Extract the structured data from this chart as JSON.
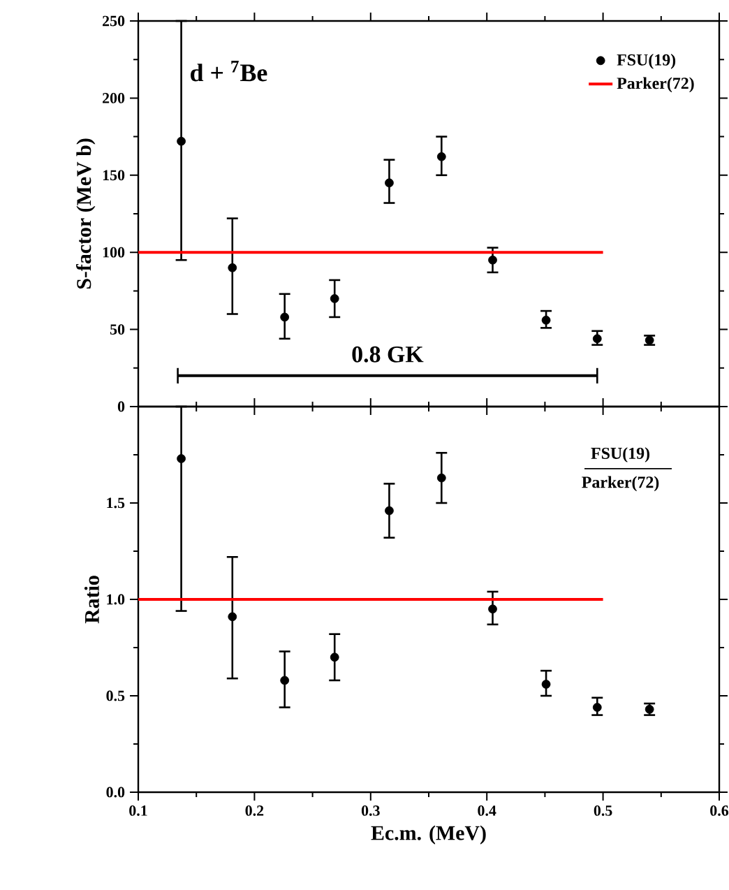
{
  "chart_data": [
    {
      "type": "scatter",
      "ylabel": "S-factor (MeV b)",
      "xlim": [
        0.1,
        0.6
      ],
      "xticks": [
        0.1,
        0.2,
        0.3,
        0.4,
        0.5,
        0.6
      ],
      "ylim": [
        0,
        250
      ],
      "yticks": [
        0,
        50,
        100,
        150,
        200,
        250
      ],
      "tick_labels": "y",
      "legend": "top right",
      "series": [
        {
          "name": "FSU(19)",
          "color": "#000000",
          "marker": "circle",
          "x": [
            0.137,
            0.181,
            0.226,
            0.269,
            0.316,
            0.361,
            0.405,
            0.451,
            0.495,
            0.54
          ],
          "values": [
            172,
            90,
            58,
            70,
            145,
            162,
            95,
            56,
            44,
            43
          ],
          "errors": [
            [
              95,
              250
            ],
            [
              60,
              122
            ],
            [
              44,
              73
            ],
            [
              58,
              82
            ],
            [
              132,
              160
            ],
            [
              150,
              175
            ],
            [
              87,
              103
            ],
            [
              51,
              62
            ],
            [
              40,
              49
            ],
            [
              40,
              46
            ]
          ]
        },
        {
          "name": "Parker(72)",
          "type": "line",
          "color": "#ff0000",
          "x": [
            0.1,
            0.5
          ],
          "values": [
            100,
            100
          ]
        },
        {
          "type": "line",
          "color": "#000000",
          "x": [
            0.134,
            0.495
          ],
          "values": [
            20,
            20
          ],
          "errors": [
            [
              15,
              25
            ],
            [
              15,
              25
            ]
          ]
        }
      ],
      "annotations": [
        "d + $^{7}$Be",
        {
          "text": "0.8 GK",
          "x": 0.3145,
          "y": 20
        }
      ]
    },
    {
      "type": "scatter",
      "xlabel": "Ec.m. (MeV)",
      "ylabel": "Ratio",
      "xlim": [
        0.1,
        0.6
      ],
      "xticks": [
        0.1,
        0.2,
        0.3,
        0.4,
        0.5,
        0.6
      ],
      "ylim": [
        0,
        2
      ],
      "yticks": [
        {
          "value": 0,
          "label": "0.0"
        },
        0.5,
        {
          "value": 1,
          "label": "1.0"
        },
        1.5,
        {
          "value": 2,
          "label": null
        }
      ],
      "series": [
        {
          "color": "#000000",
          "marker": "circle",
          "x": [
            0.137,
            0.181,
            0.226,
            0.269,
            0.316,
            0.361,
            0.405,
            0.451,
            0.495,
            0.54
          ],
          "values": [
            1.73,
            0.91,
            0.58,
            0.7,
            1.46,
            1.63,
            0.95,
            0.56,
            0.44,
            0.43
          ],
          "errors": [
            [
              0.94,
              2.0
            ],
            [
              0.59,
              1.22
            ],
            [
              0.44,
              0.73
            ],
            [
              0.58,
              0.82
            ],
            [
              1.32,
              1.6
            ],
            [
              1.5,
              1.76
            ],
            [
              0.87,
              1.04
            ],
            [
              0.5,
              0.63
            ],
            [
              0.4,
              0.49
            ],
            [
              0.4,
              0.46
            ]
          ]
        },
        {
          "type": "line",
          "color": "#ff0000",
          "x": [
            0.1,
            0.5
          ],
          "values": [
            1,
            1
          ]
        }
      ],
      "annotations": [
        "FSU(19)",
        "Parker(72)"
      ]
    }
  ]
}
